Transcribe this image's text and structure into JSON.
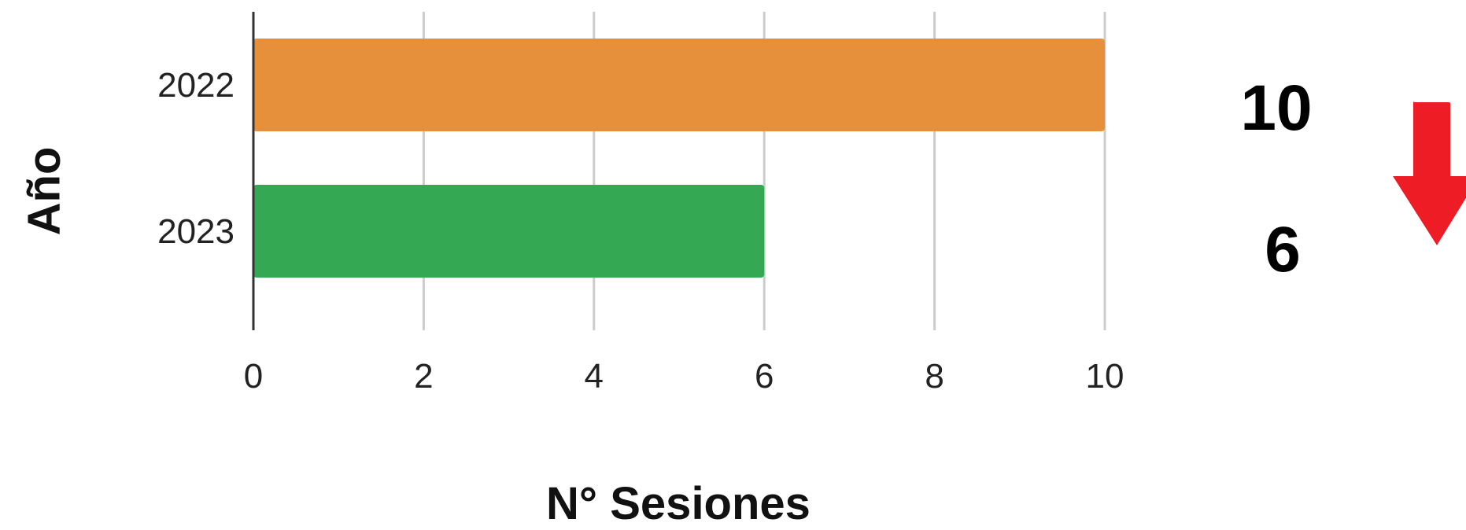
{
  "chart_data": {
    "type": "bar",
    "orientation": "horizontal",
    "categories": [
      "2022",
      "2023"
    ],
    "values": [
      10,
      6
    ],
    "bar_colors": [
      "#E6903B",
      "#35A853"
    ],
    "xlabel": "N° Sesiones",
    "ylabel": "Año",
    "xlim": [
      0,
      10
    ],
    "xticks": [
      0,
      2,
      4,
      6,
      8,
      10
    ],
    "grid": true
  },
  "summary": {
    "values": [
      "10",
      "6"
    ],
    "trend": "down",
    "trend_icon": "down-arrow-icon",
    "trend_color": "#EE1C25"
  }
}
